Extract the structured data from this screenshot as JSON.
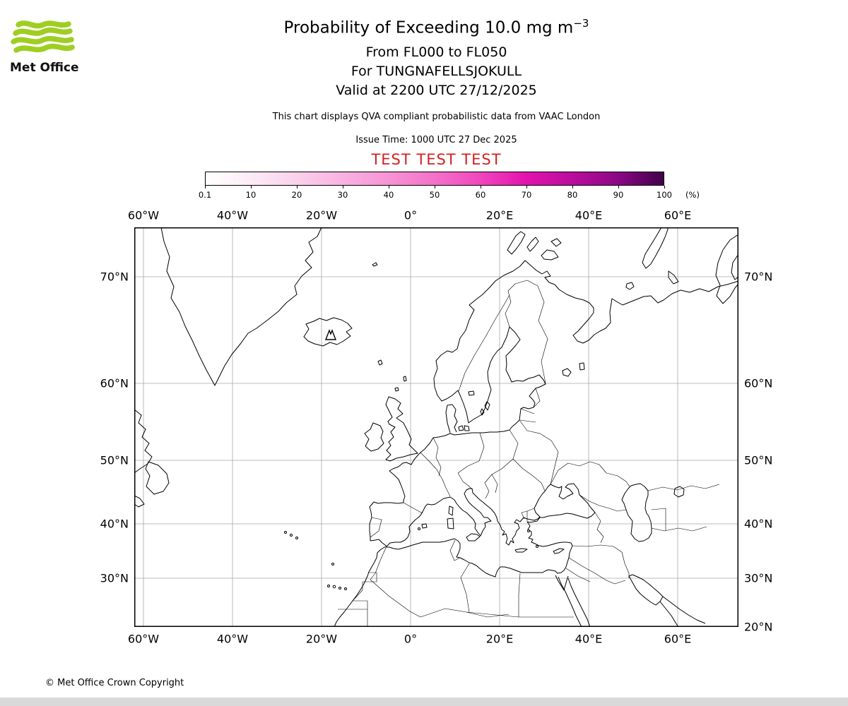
{
  "header": {
    "logo_text": "Met Office",
    "title": "Probability of Exceeding 10.0 mg m",
    "title_sup": "−3",
    "line_flight_levels": "From FL000 to FL050",
    "line_volcano": "For TUNGNAFELLSJOKULL",
    "line_valid": "Valid at 2200 UTC 27/12/2025",
    "qva_note": "This chart displays QVA compliant probabilistic data from VAAC London",
    "issue_time": "Issue Time: 1000 UTC 27 Dec 2025",
    "test_banner": "TEST TEST TEST"
  },
  "colorbar": {
    "ticks": [
      "0.1",
      "10",
      "20",
      "30",
      "40",
      "50",
      "60",
      "70",
      "80",
      "90",
      "100"
    ],
    "unit": "(%)",
    "colors": [
      "#ffffff",
      "#fdebf7",
      "#fbd0ec",
      "#f9b2e1",
      "#f793d5",
      "#f471c9",
      "#f146bd",
      "#e312af",
      "#bb0d9d",
      "#8c0786",
      "#40014a"
    ]
  },
  "map": {
    "lon_labels": [
      "60°W",
      "40°W",
      "20°W",
      "0°",
      "20°E",
      "40°E",
      "60°E"
    ],
    "lat_labels_left": [
      "70°N",
      "60°N",
      "50°N",
      "40°N",
      "30°N"
    ],
    "lat_labels_right": [
      "70°N",
      "60°N",
      "50°N",
      "40°N",
      "30°N",
      "20°N"
    ],
    "volcano_icon": "volcano"
  },
  "footer": {
    "copyright": "© Met Office Crown Copyright"
  },
  "colors": {
    "test_banner": "#d22222",
    "logo_green": "#9fce22",
    "grid": "#a8a8a8"
  }
}
